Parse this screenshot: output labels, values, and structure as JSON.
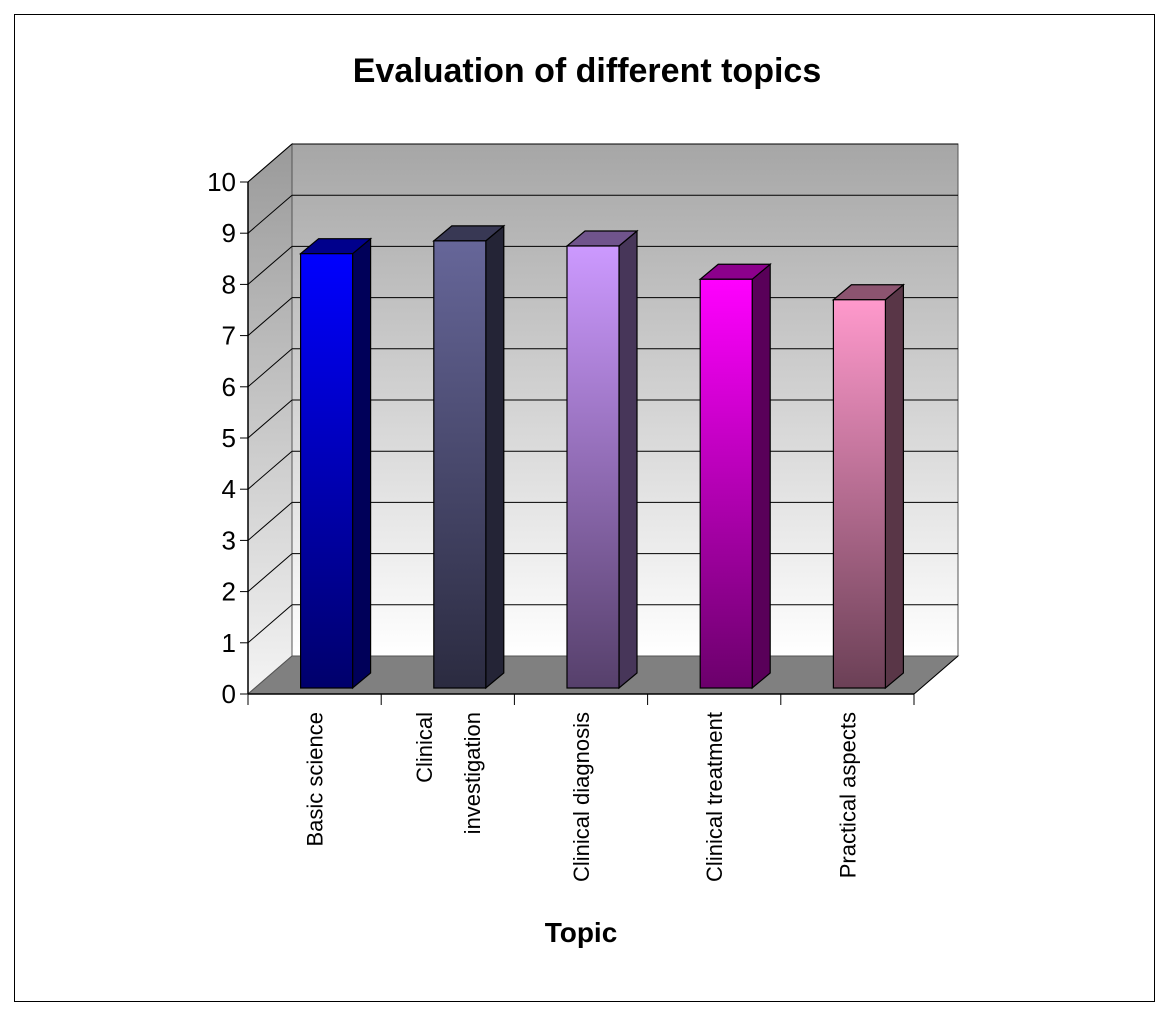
{
  "chart_data": {
    "type": "bar",
    "style": "3d-column",
    "title": "Evaluation of different topics",
    "xlabel": "Topic",
    "ylabel": "",
    "ylim": [
      0,
      10
    ],
    "yticks": [
      0,
      1,
      2,
      3,
      4,
      5,
      6,
      7,
      8,
      9,
      10
    ],
    "grid": true,
    "legend": "none",
    "categories": [
      [
        "Basic science"
      ],
      [
        "Clinical",
        "investigation"
      ],
      [
        "Clinical diagnosis"
      ],
      [
        "Clinical treatment"
      ],
      [
        "Practical aspects"
      ]
    ],
    "values": [
      8.6,
      8.85,
      8.75,
      8.1,
      7.7
    ],
    "colors": {
      "bars": [
        "#0000ff",
        "#666699",
        "#cc99ff",
        "#ff00ff",
        "#ff99cc"
      ],
      "floor": "#808080",
      "back_wall_top": "#a8a8a8",
      "back_wall_bottom": "#ffffff",
      "gridline": "#000000"
    }
  }
}
